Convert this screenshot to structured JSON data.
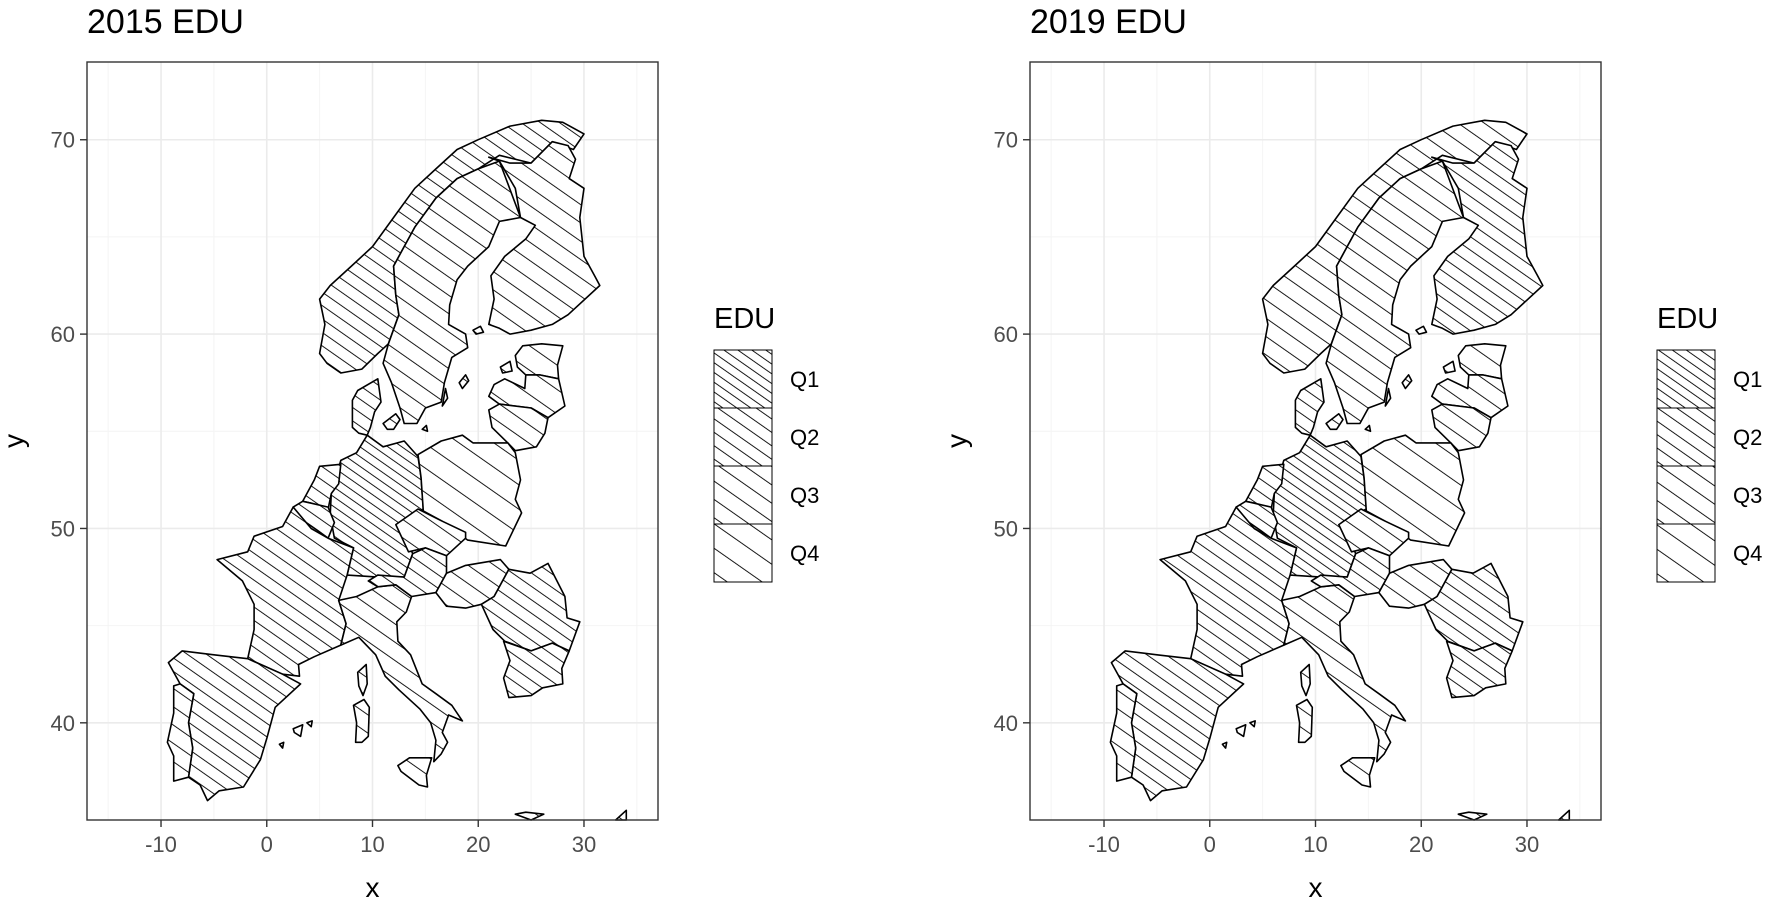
{
  "chart_data": [
    {
      "type": "choropleth-map",
      "title": "2015 EDU",
      "xlabel": "x",
      "ylabel": "y",
      "xlim": [
        -17,
        37
      ],
      "ylim": [
        35,
        74
      ],
      "x_ticks": [
        -10,
        0,
        10,
        20,
        30
      ],
      "y_ticks": [
        40,
        50,
        60,
        70
      ],
      "grid": true,
      "legend": {
        "title": "EDU",
        "position": "right",
        "classes": [
          "Q1",
          "Q2",
          "Q3",
          "Q4"
        ]
      },
      "regions": [
        {
          "name": "Norway",
          "class": "Q2"
        },
        {
          "name": "Sweden",
          "class": "Q3"
        },
        {
          "name": "Finland",
          "class": "Q3"
        },
        {
          "name": "Estonia",
          "class": "Q4"
        },
        {
          "name": "Latvia",
          "class": "Q4"
        },
        {
          "name": "Lithuania",
          "class": "Q3"
        },
        {
          "name": "Denmark",
          "class": "Q2"
        },
        {
          "name": "Germany",
          "class": "Q1"
        },
        {
          "name": "Poland",
          "class": "Q4"
        },
        {
          "name": "Netherlands",
          "class": "Q2"
        },
        {
          "name": "Belgium",
          "class": "Q2"
        },
        {
          "name": "France",
          "class": "Q2"
        },
        {
          "name": "Spain",
          "class": "Q2"
        },
        {
          "name": "Portugal",
          "class": "Q3"
        },
        {
          "name": "Italy",
          "class": "Q3"
        },
        {
          "name": "Czechia",
          "class": "Q3"
        },
        {
          "name": "Austria",
          "class": "Q2"
        },
        {
          "name": "Hungary",
          "class": "Q3"
        },
        {
          "name": "Romania",
          "class": "Q2"
        },
        {
          "name": "Bulgaria",
          "class": "Q2"
        }
      ]
    },
    {
      "type": "choropleth-map",
      "title": "2019 EDU",
      "xlabel": "x",
      "ylabel": "y",
      "xlim": [
        -17,
        37
      ],
      "ylim": [
        35,
        74
      ],
      "x_ticks": [
        -10,
        0,
        10,
        20,
        30
      ],
      "y_ticks": [
        40,
        50,
        60,
        70
      ],
      "grid": true,
      "legend": {
        "title": "EDU",
        "position": "right",
        "classes": [
          "Q1",
          "Q2",
          "Q3",
          "Q4"
        ]
      },
      "regions": [
        {
          "name": "Norway",
          "class": "Q3"
        },
        {
          "name": "Sweden",
          "class": "Q3"
        },
        {
          "name": "Finland",
          "class": "Q2"
        },
        {
          "name": "Estonia",
          "class": "Q4"
        },
        {
          "name": "Latvia",
          "class": "Q3"
        },
        {
          "name": "Lithuania",
          "class": "Q3"
        },
        {
          "name": "Denmark",
          "class": "Q2"
        },
        {
          "name": "Germany",
          "class": "Q1"
        },
        {
          "name": "Poland",
          "class": "Q4"
        },
        {
          "name": "Netherlands",
          "class": "Q2"
        },
        {
          "name": "Belgium",
          "class": "Q2"
        },
        {
          "name": "France",
          "class": "Q2"
        },
        {
          "name": "Spain",
          "class": "Q2"
        },
        {
          "name": "Portugal",
          "class": "Q3"
        },
        {
          "name": "Italy",
          "class": "Q3"
        },
        {
          "name": "Czechia",
          "class": "Q3"
        },
        {
          "name": "Austria",
          "class": "Q2"
        },
        {
          "name": "Hungary",
          "class": "Q3"
        },
        {
          "name": "Romania",
          "class": "Q2"
        },
        {
          "name": "Bulgaria",
          "class": "Q2"
        }
      ]
    }
  ]
}
